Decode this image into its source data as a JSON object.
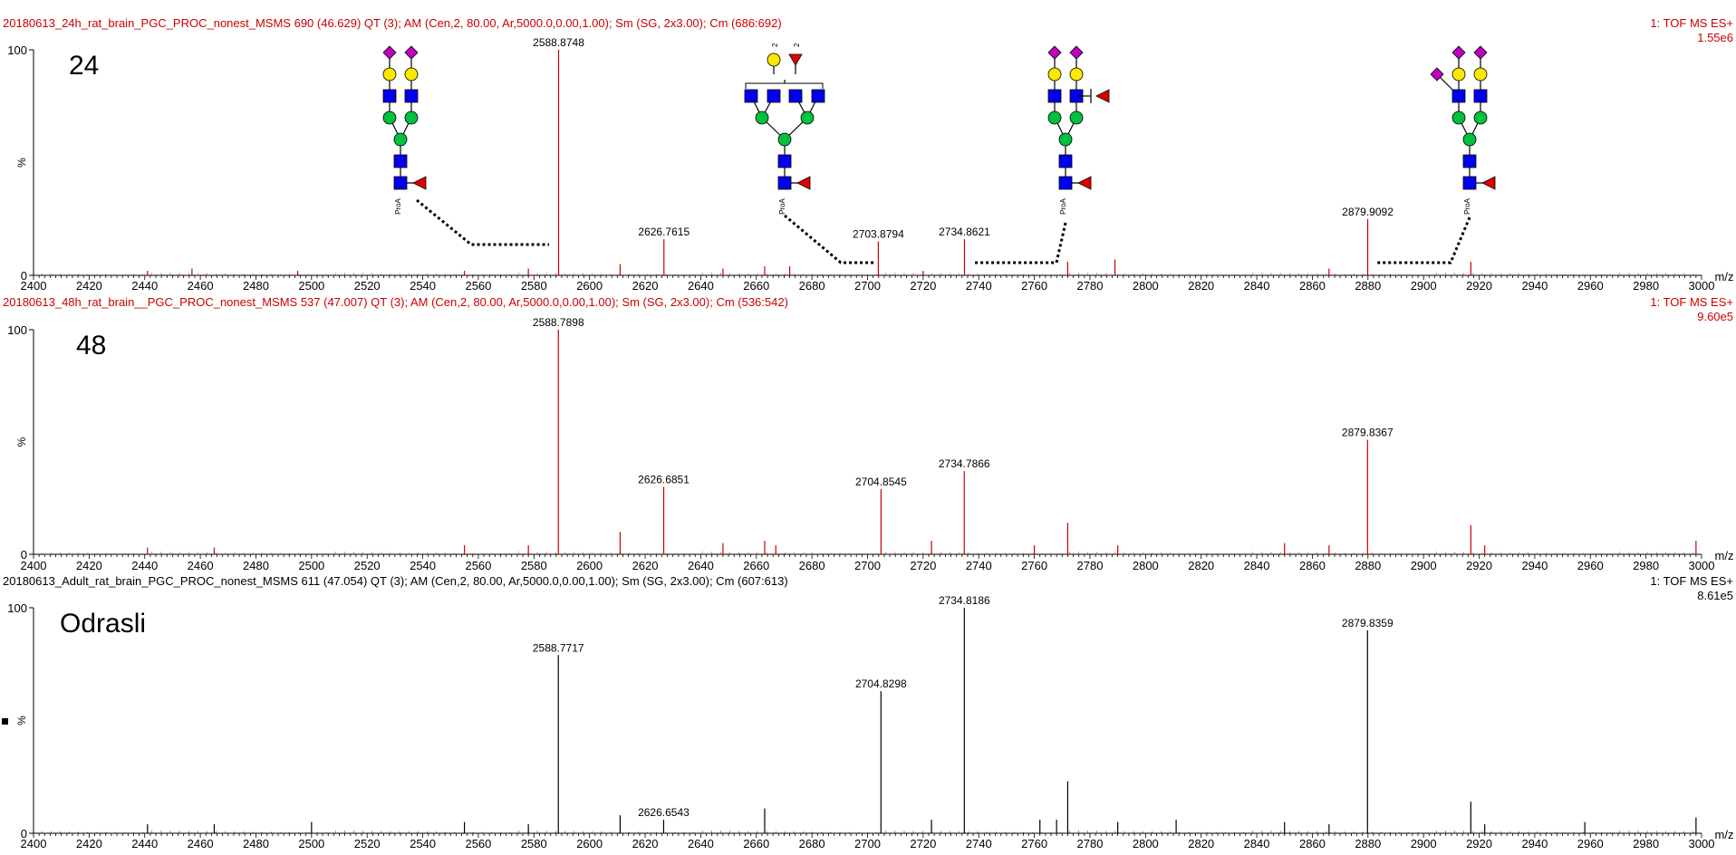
{
  "colors": {
    "red": "#cc0000",
    "black": "#000000",
    "fuc": "#c000c0",
    "gal": "#ffe800",
    "glcnac": "#0000ee",
    "man": "#00c040"
  },
  "ymin_label": "0",
  "ymax_label": "100",
  "pct_label": "%",
  "x_unit": "m/z",
  "chart_data": [
    {
      "type": "bar",
      "header": "20180613_24h_rat_brain_PGC_PROC_nonest_MSMS  690 (46.629) QT (3); AM (Cen,2, 80.00, Ar,5000.0,0.00,1.00); Sm (SG, 2x3.00); Cm (686:692)",
      "mode": "1: TOF MS ES+",
      "intensity": "1.55e6",
      "label": "24",
      "color": "#cc0000",
      "xlim": [
        2400,
        3000
      ],
      "ylim": [
        0,
        100
      ],
      "xticks": [
        2400,
        2420,
        2440,
        2460,
        2480,
        2500,
        2520,
        2540,
        2560,
        2580,
        2600,
        2620,
        2640,
        2660,
        2680,
        2700,
        2720,
        2740,
        2760,
        2780,
        2800,
        2820,
        2840,
        2860,
        2880,
        2900,
        2920,
        2940,
        2960,
        2980,
        3000
      ],
      "peaks": [
        {
          "x": 2588.8748,
          "y": 100,
          "label": "2588.8748"
        },
        {
          "x": 2626.7615,
          "y": 16,
          "label": "2626.7615"
        },
        {
          "x": 2703.8794,
          "y": 15,
          "label": "2703.8794"
        },
        {
          "x": 2734.8621,
          "y": 16,
          "label": "2734.8621"
        },
        {
          "x": 2879.9092,
          "y": 25,
          "label": "2879.9092"
        },
        {
          "x": 2611,
          "y": 5
        },
        {
          "x": 2648,
          "y": 3
        },
        {
          "x": 2663,
          "y": 4
        },
        {
          "x": 2672,
          "y": 4
        },
        {
          "x": 2720,
          "y": 2
        },
        {
          "x": 2772,
          "y": 6
        },
        {
          "x": 2789,
          "y": 7
        },
        {
          "x": 2917,
          "y": 6
        },
        {
          "x": 2866,
          "y": 3
        },
        {
          "x": 2441,
          "y": 2
        },
        {
          "x": 2457,
          "y": 3
        },
        {
          "x": 2495,
          "y": 2
        },
        {
          "x": 2555,
          "y": 2
        },
        {
          "x": 2578,
          "y": 3
        }
      ]
    },
    {
      "type": "bar",
      "header": "20180613_48h_rat_brain__PGC_PROC_nonest_MSMS  537 (47.007) QT (3); AM (Cen,2, 80.00, Ar,5000.0,0.00,1.00); Sm (SG, 2x3.00); Cm (536:542)",
      "mode": "1: TOF MS ES+",
      "intensity": "9.60e5",
      "label": "48",
      "color": "#cc0000",
      "xlim": [
        2400,
        3000
      ],
      "ylim": [
        0,
        100
      ],
      "xticks": [
        2400,
        2420,
        2440,
        2460,
        2480,
        2500,
        2520,
        2540,
        2560,
        2580,
        2600,
        2620,
        2640,
        2660,
        2680,
        2700,
        2720,
        2740,
        2760,
        2780,
        2800,
        2820,
        2840,
        2860,
        2880,
        2900,
        2920,
        2940,
        2960,
        2980,
        3000
      ],
      "peaks": [
        {
          "x": 2588.7898,
          "y": 100,
          "label": "2588.7898"
        },
        {
          "x": 2626.6851,
          "y": 30,
          "label": "2626.6851"
        },
        {
          "x": 2704.8545,
          "y": 29,
          "label": "2704.8545"
        },
        {
          "x": 2734.7866,
          "y": 37,
          "label": "2734.7866"
        },
        {
          "x": 2879.8367,
          "y": 51,
          "label": "2879.8367"
        },
        {
          "x": 2611,
          "y": 10
        },
        {
          "x": 2648,
          "y": 5
        },
        {
          "x": 2663,
          "y": 6
        },
        {
          "x": 2667,
          "y": 4
        },
        {
          "x": 2723,
          "y": 6
        },
        {
          "x": 2760,
          "y": 4
        },
        {
          "x": 2772,
          "y": 14
        },
        {
          "x": 2790,
          "y": 4
        },
        {
          "x": 2850,
          "y": 5
        },
        {
          "x": 2866,
          "y": 4
        },
        {
          "x": 2917,
          "y": 13
        },
        {
          "x": 2922,
          "y": 4
        },
        {
          "x": 2441,
          "y": 3
        },
        {
          "x": 2465,
          "y": 3
        },
        {
          "x": 2578,
          "y": 4
        },
        {
          "x": 2555,
          "y": 4
        },
        {
          "x": 2998,
          "y": 6
        }
      ]
    },
    {
      "type": "bar",
      "header": "20180613_Adult_rat_brain_PGC_PROC_nonest_MSMS  611 (47.054) QT (3); AM (Cen,2, 80.00, Ar,5000.0,0.00,1.00); Sm (SG, 2x3.00); Cm (607:613)",
      "mode": "1: TOF MS ES+",
      "intensity": "8.61e5",
      "label": "Odrasli",
      "color": "#000000",
      "xlim": [
        2400,
        3000
      ],
      "ylim": [
        0,
        100
      ],
      "xticks": [
        2400,
        2420,
        2440,
        2460,
        2480,
        2500,
        2520,
        2540,
        2560,
        2580,
        2600,
        2620,
        2640,
        2660,
        2680,
        2700,
        2720,
        2740,
        2760,
        2780,
        2800,
        2820,
        2840,
        2860,
        2880,
        2900,
        2920,
        2940,
        2960,
        2980,
        3000
      ],
      "peaks": [
        {
          "x": 2588.7717,
          "y": 79,
          "label": "2588.7717"
        },
        {
          "x": 2626.6543,
          "y": 6,
          "label": "2626.6543"
        },
        {
          "x": 2704.8298,
          "y": 63,
          "label": "2704.8298"
        },
        {
          "x": 2734.8186,
          "y": 100,
          "label": "2734.8186"
        },
        {
          "x": 2879.8359,
          "y": 90,
          "label": "2879.8359"
        },
        {
          "x": 2611,
          "y": 8
        },
        {
          "x": 2663,
          "y": 11
        },
        {
          "x": 2723,
          "y": 6
        },
        {
          "x": 2762,
          "y": 6
        },
        {
          "x": 2768,
          "y": 6
        },
        {
          "x": 2772,
          "y": 23
        },
        {
          "x": 2790,
          "y": 5
        },
        {
          "x": 2811,
          "y": 6
        },
        {
          "x": 2850,
          "y": 5
        },
        {
          "x": 2866,
          "y": 4
        },
        {
          "x": 2917,
          "y": 14
        },
        {
          "x": 2922,
          "y": 4
        },
        {
          "x": 2441,
          "y": 4
        },
        {
          "x": 2465,
          "y": 4
        },
        {
          "x": 2500,
          "y": 5
        },
        {
          "x": 2555,
          "y": 5
        },
        {
          "x": 2578,
          "y": 4
        },
        {
          "x": 2998,
          "y": 7
        },
        {
          "x": 2958,
          "y": 5
        }
      ]
    }
  ]
}
